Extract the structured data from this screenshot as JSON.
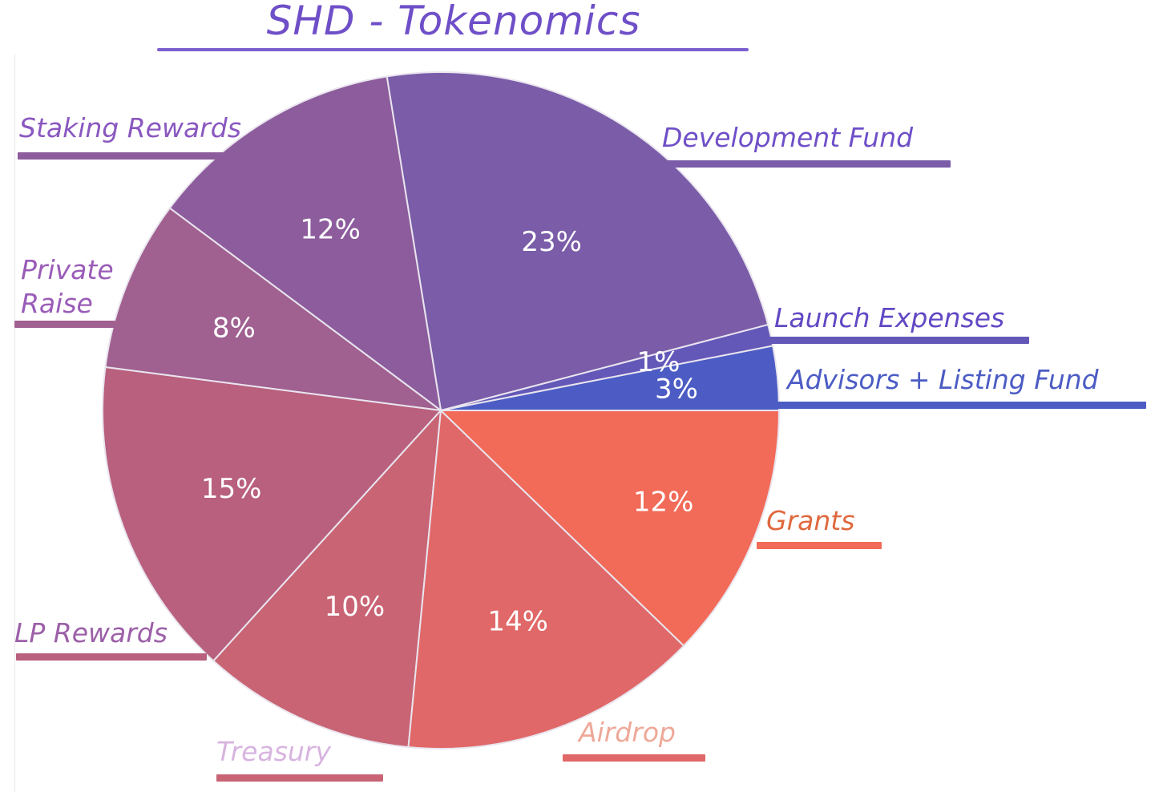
{
  "chart_data": {
    "type": "pie",
    "title": "SHD - Tokenomics",
    "start_angle_deg": 0,
    "direction": "counterclockwise",
    "slices": [
      {
        "label": "Advisors + Listing Fund",
        "value": 3,
        "value_label": "3%",
        "color": "#4c5cc4",
        "label_color": "#4c5cc4"
      },
      {
        "label": "Launch Expenses",
        "value": 1,
        "value_label": "1%",
        "color": "#6358b8",
        "label_color": "#6248c4"
      },
      {
        "label": "Development Fund",
        "value": 23,
        "value_label": "23%",
        "color": "#7a5ca8",
        "label_color": "#6f4fc8"
      },
      {
        "label": "Staking Rewards",
        "value": 12,
        "value_label": "12%",
        "color": "#8c5c9c",
        "label_color": "#8a58c0"
      },
      {
        "label": "Private Raise",
        "value": 8,
        "value_label": "8%",
        "color": "#a06090",
        "label_color": "#9a5cb8"
      },
      {
        "label": "LP Rewards",
        "value": 15,
        "value_label": "15%",
        "color": "#b8607e",
        "label_color": "#9c60a8"
      },
      {
        "label": "Treasury",
        "value": 10,
        "value_label": "10%",
        "color": "#c86474",
        "label_color": "#d8b4e0"
      },
      {
        "label": "Airdrop",
        "value": 14,
        "value_label": "14%",
        "color": "#e06868",
        "label_color": "#eea898"
      },
      {
        "label": "Grants",
        "value": 12,
        "value_label": "12%",
        "color": "#f26a58",
        "label_color": "#e0683e"
      }
    ]
  },
  "title_color": "#6f4fc8",
  "title_underline_color": "#7b5fd0"
}
